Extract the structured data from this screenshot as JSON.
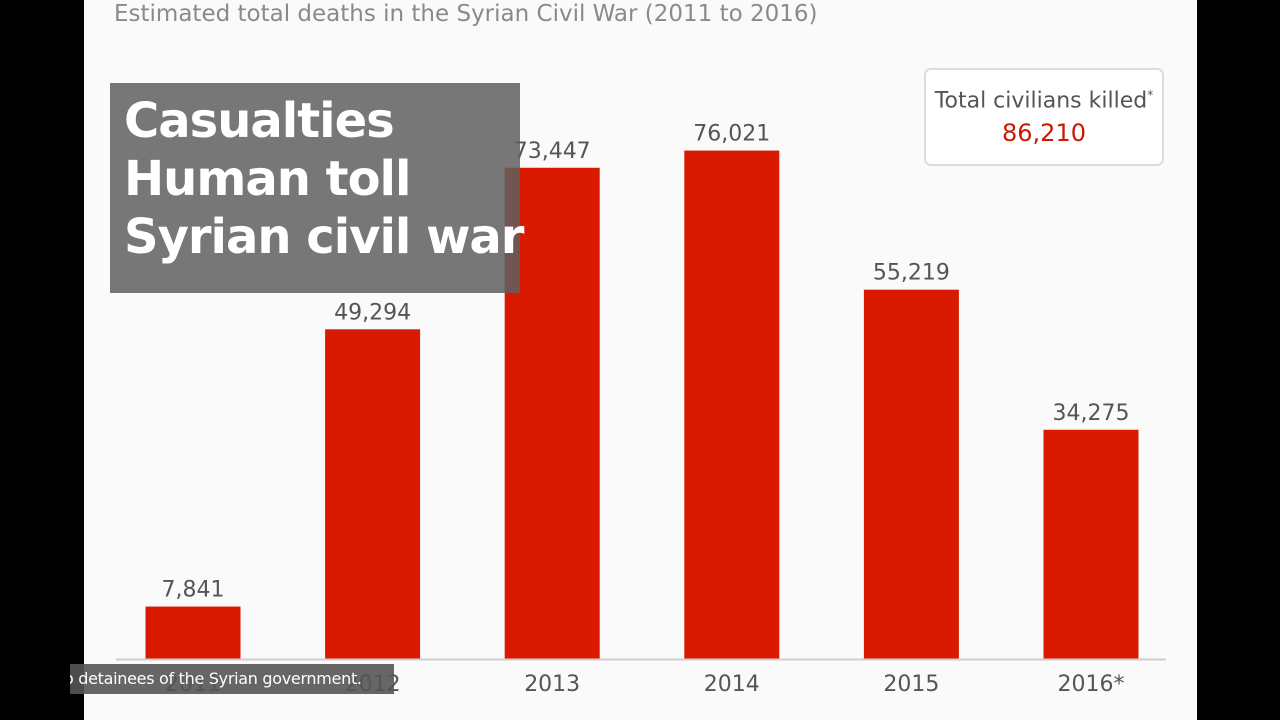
{
  "chart_data": {
    "type": "bar",
    "title": "Estimated total deaths in the Syrian Civil War (2011 to 2016)",
    "categories": [
      "2011",
      "2012",
      "2013",
      "2014",
      "2015",
      "2016*"
    ],
    "values": [
      7841,
      49294,
      73447,
      76021,
      55219,
      34275
    ],
    "value_labels": [
      "7,841",
      "49,294",
      "73,447",
      "76,021",
      "55,219",
      "34,275"
    ],
    "ylim": [
      0,
      85000
    ],
    "grid": false,
    "bar_color": "#d91a00"
  },
  "total_box": {
    "label": "Total civilians killed",
    "asterisk": "*",
    "value": "86,210",
    "value_color": "#c81a00"
  },
  "overlay": {
    "lines": [
      "Casualties",
      "Human toll",
      "Syrian civil war"
    ]
  },
  "subtitle": {
    "text": "o detainees of the Syrian government."
  }
}
